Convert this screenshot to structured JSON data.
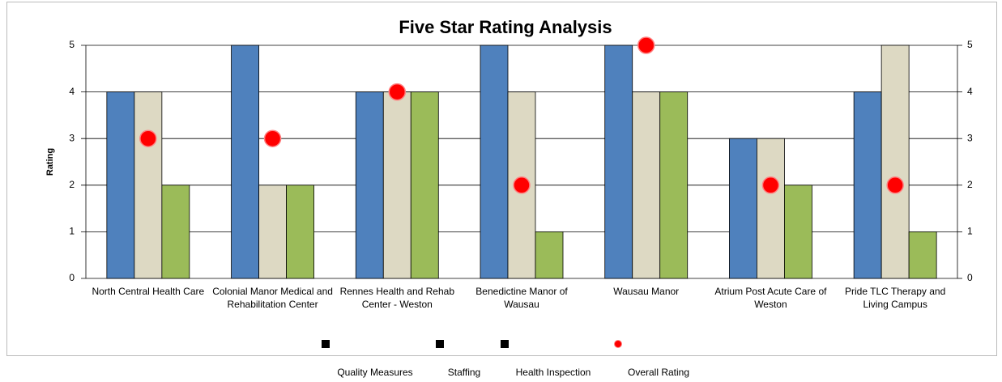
{
  "chart_data": {
    "type": "bar",
    "title": "Five Star Rating Analysis",
    "y_label": "Rating",
    "categories": [
      "North Central Health Care",
      "Colonial Manor Medical and Rehabilitation Center",
      "Rennes Health and Rehab Center - Weston",
      "Benedictine Manor of Wausau",
      "Wausau Manor",
      "Atrium Post Acute Care of Weston",
      "Pride TLC Therapy and Living Campus"
    ],
    "series": [
      {
        "name": "Quality Measures",
        "color": "#4f81bd",
        "values": [
          4,
          5,
          4,
          5,
          5,
          3,
          4
        ]
      },
      {
        "name": "Staffing",
        "color": "#ddd9c3",
        "values": [
          4,
          2,
          4,
          4,
          4,
          3,
          5
        ]
      },
      {
        "name": "Health Inspection",
        "color": "#9bbb59",
        "values": [
          2,
          2,
          4,
          1,
          4,
          2,
          1
        ]
      },
      {
        "name": "Overall Rating",
        "type": "scatter",
        "color": "#ff0000",
        "values": [
          3,
          3,
          4,
          2,
          5,
          2,
          2
        ]
      }
    ],
    "ylim": [
      0,
      5
    ],
    "yticks": [
      0,
      1,
      2,
      3,
      4,
      5
    ],
    "y2lim": [
      0,
      5
    ],
    "y2ticks": [
      0,
      1,
      2,
      3,
      4,
      5
    ],
    "grid": true,
    "legend": "bottom"
  }
}
